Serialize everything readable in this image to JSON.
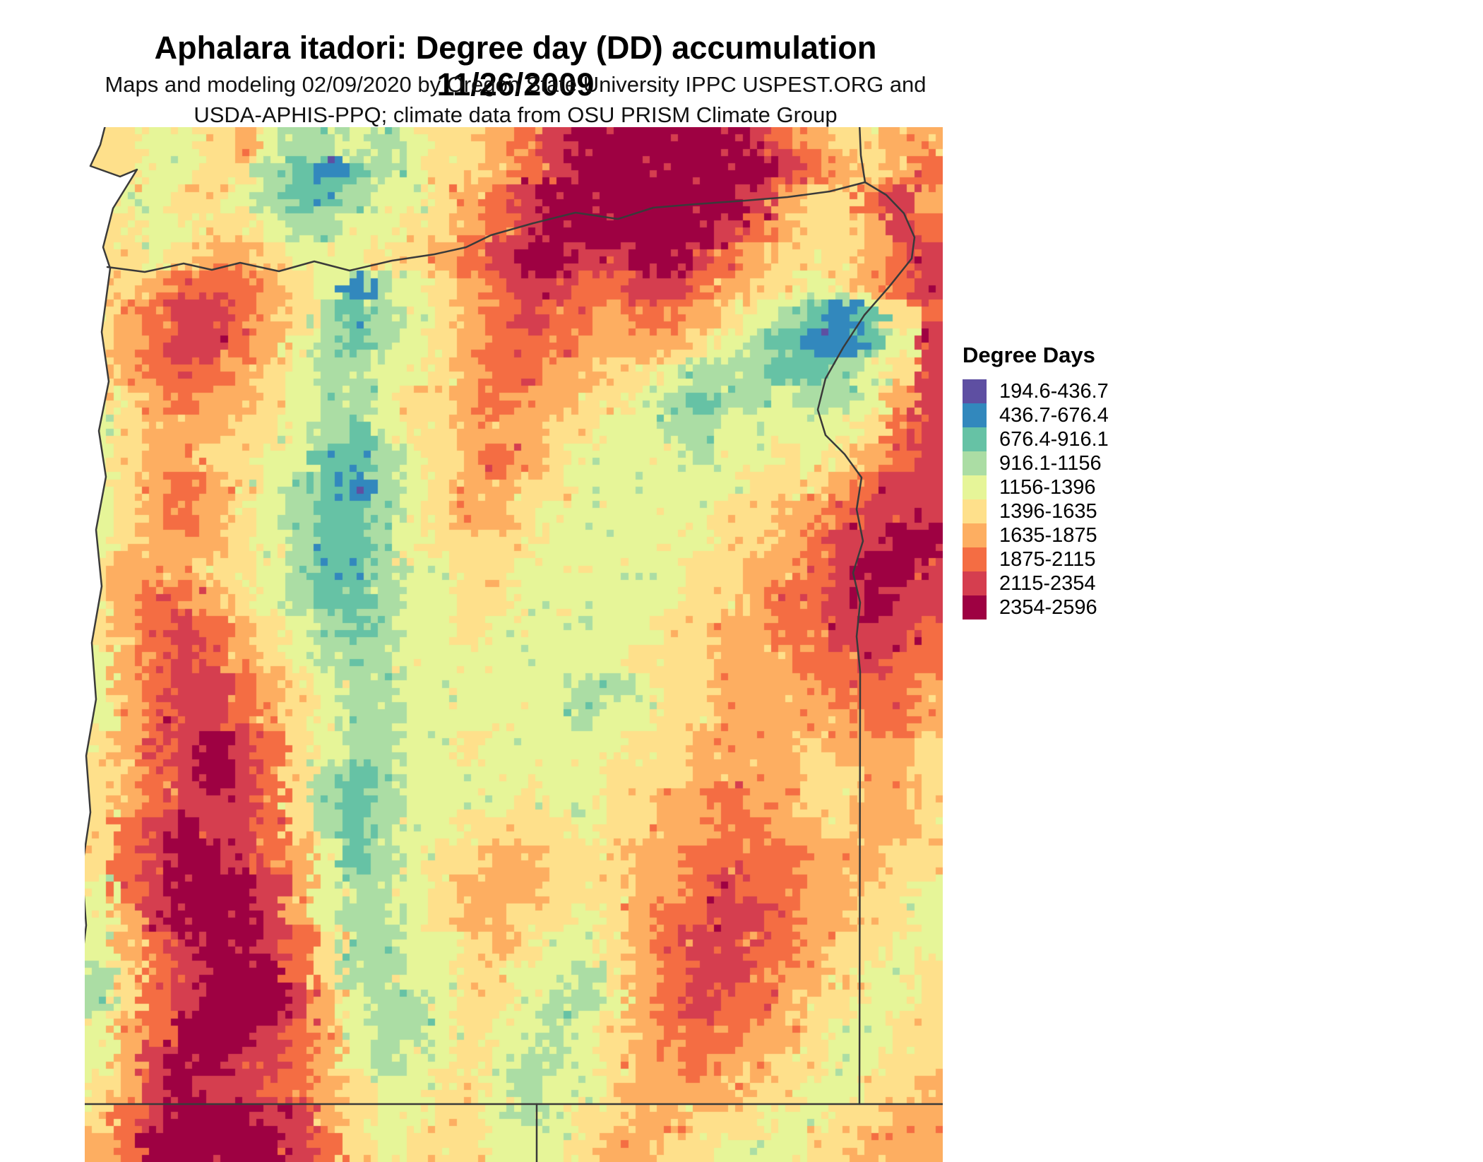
{
  "header": {
    "title": "Aphalara itadori: Degree day (DD) accumulation 11/26/2009",
    "subtitle_line1": "Maps and modeling 02/09/2020 by Oregon State University IPPC USPEST.ORG and",
    "subtitle_line2": "USDA-APHIS-PPQ; climate data from OSU PRISM Climate Group"
  },
  "legend": {
    "title": "Degree Days",
    "items": [
      {
        "label": "194.6-436.7",
        "color": "#5e4fa2"
      },
      {
        "label": "436.7-676.4",
        "color": "#3288bd"
      },
      {
        "label": "676.4-916.1",
        "color": "#66c2a5"
      },
      {
        "label": "916.1-1156",
        "color": "#abdda4"
      },
      {
        "label": "1156-1396",
        "color": "#e6f598"
      },
      {
        "label": "1396-1635",
        "color": "#fee08b"
      },
      {
        "label": "1635-1875",
        "color": "#fdae61"
      },
      {
        "label": "1875-2115",
        "color": "#f46d43"
      },
      {
        "label": "2115-2354",
        "color": "#d53e4f"
      },
      {
        "label": "2354-2596",
        "color": "#9e0142"
      }
    ]
  },
  "map": {
    "border_color": "#3a3a3a",
    "ocean_color": "#ffffff",
    "grid": [
      "554456433434556789999998765566",
      "554455321234556789999999876567",
      "544554322344567899999998655786",
      "554455433445567899999987655687",
      "554566544455678998899876555678",
      "556777654134567887788765545678",
      "567887653234567877677654321257",
      "567887643234567776666543211248",
      "567776543344567766554333223458",
      "456766543345567665543233433468",
      "456665543245566655443344444578",
      "456655442234567654444344545678",
      "456765432134566554444445556788",
      "456765432234566544444455667888",
      "456665432234555544444455678899",
      "566655432234455444444556678998",
      "567765432234455444444556778988",
      "567876543234454444445566778887",
      "467876543334444444455566677877",
      "467887654334444443345566667776",
      "467887654334444443445566666776",
      "567898754334454444455666656665",
      "567898753234444444555666655665",
      "567888753234444544556676655665",
      "578988753234455554556677665665",
      "578998764234556655566777766655",
      "478999864334566655566787766554",
      "468999864334566554567788766554",
      "467899875334456544567887765544",
      "357899975334455443567887665445",
      "357899986433455433467877655445",
      "467999876433454434567776654455",
      "468998876434454334566766554455",
      "568988776544554344566665544556",
      "578999886544554345566555445566",
      "679999987545554445665544455666"
    ]
  }
}
